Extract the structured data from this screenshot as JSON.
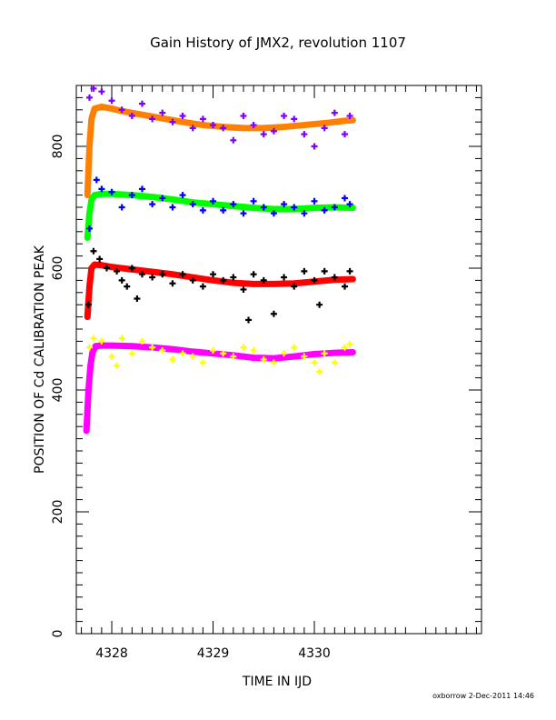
{
  "chart_data": {
    "type": "scatter",
    "title": "Gain History of JMX2, revolution 1107",
    "xlabel": "TIME IN IJD",
    "ylabel": "POSITION OF Cd CALIBRATION PEAK",
    "footer": "oxborrow  2-Dec-2011 14:46",
    "xlim": [
      4327.65,
      4331.65
    ],
    "ylim": [
      0,
      900
    ],
    "xticks": [
      4328,
      4329,
      4330
    ],
    "xtick_labels": [
      "4328",
      "4329",
      "4330"
    ],
    "yticks": [
      0,
      200,
      400,
      600,
      800
    ],
    "ytick_labels": [
      "0",
      "200",
      "400",
      "600",
      "800"
    ],
    "grid": false,
    "legend": "none",
    "series": [
      {
        "color": "#ff8000",
        "fit": true,
        "x": [
          4327.76,
          4327.78,
          4327.8,
          4327.83,
          4327.9,
          4328.0,
          4328.1,
          4328.3,
          4328.5,
          4328.7,
          4328.9,
          4329.1,
          4329.3,
          4329.5,
          4329.7,
          4329.9,
          4330.1,
          4330.3,
          4330.38
        ],
        "values": [
          720,
          800,
          845,
          862,
          865,
          862,
          858,
          852,
          846,
          840,
          835,
          832,
          830,
          830,
          832,
          835,
          838,
          842,
          843
        ]
      },
      {
        "color": "#8000ff",
        "fit": false,
        "x": [
          4327.78,
          4327.82,
          4327.9,
          4328.0,
          4328.1,
          4328.2,
          4328.3,
          4328.4,
          4328.5,
          4328.6,
          4328.7,
          4328.8,
          4328.9,
          4329.0,
          4329.1,
          4329.2,
          4329.3,
          4329.4,
          4329.5,
          4329.6,
          4329.7,
          4329.8,
          4329.9,
          4330.0,
          4330.1,
          4330.2,
          4330.3,
          4330.35
        ],
        "values": [
          880,
          895,
          890,
          875,
          860,
          850,
          870,
          845,
          855,
          840,
          850,
          830,
          845,
          835,
          830,
          810,
          850,
          835,
          820,
          825,
          850,
          845,
          820,
          800,
          830,
          855,
          820,
          850
        ]
      },
      {
        "color": "#00ff00",
        "fit": true,
        "x": [
          4327.76,
          4327.78,
          4327.8,
          4327.83,
          4327.9,
          4328.0,
          4328.2,
          4328.4,
          4328.6,
          4328.8,
          4329.0,
          4329.2,
          4329.4,
          4329.6,
          4329.8,
          4330.0,
          4330.2,
          4330.38
        ],
        "values": [
          650,
          690,
          712,
          720,
          722,
          722,
          720,
          717,
          713,
          708,
          705,
          702,
          699,
          697,
          697,
          699,
          700,
          699
        ]
      },
      {
        "color": "#0000ff",
        "fit": false,
        "x": [
          4327.78,
          4327.85,
          4327.9,
          4328.0,
          4328.1,
          4328.2,
          4328.3,
          4328.4,
          4328.5,
          4328.6,
          4328.7,
          4328.8,
          4328.9,
          4329.0,
          4329.1,
          4329.2,
          4329.3,
          4329.4,
          4329.5,
          4329.6,
          4329.7,
          4329.8,
          4329.9,
          4330.0,
          4330.1,
          4330.2,
          4330.3,
          4330.35
        ],
        "values": [
          665,
          745,
          730,
          725,
          700,
          720,
          730,
          705,
          715,
          700,
          720,
          705,
          695,
          710,
          695,
          705,
          690,
          710,
          700,
          690,
          705,
          700,
          690,
          710,
          695,
          700,
          715,
          705
        ]
      },
      {
        "color": "#ff0000",
        "fit": true,
        "x": [
          4327.76,
          4327.78,
          4327.8,
          4327.83,
          4327.9,
          4328.0,
          4328.2,
          4328.4,
          4328.6,
          4328.8,
          4329.0,
          4329.2,
          4329.4,
          4329.6,
          4329.8,
          4330.0,
          4330.2,
          4330.38
        ],
        "values": [
          520,
          570,
          600,
          606,
          605,
          602,
          598,
          594,
          590,
          585,
          580,
          576,
          574,
          574,
          575,
          578,
          581,
          582
        ]
      },
      {
        "color": "#000000",
        "fit": false,
        "x": [
          4327.77,
          4327.82,
          4327.88,
          4327.95,
          4328.05,
          4328.1,
          4328.15,
          4328.2,
          4328.25,
          4328.3,
          4328.4,
          4328.5,
          4328.6,
          4328.7,
          4328.8,
          4328.9,
          4329.0,
          4329.1,
          4329.2,
          4329.3,
          4329.35,
          4329.4,
          4329.5,
          4329.6,
          4329.7,
          4329.8,
          4329.9,
          4330.0,
          4330.05,
          4330.1,
          4330.2,
          4330.3,
          4330.35
        ],
        "values": [
          540,
          628,
          615,
          600,
          595,
          580,
          570,
          600,
          550,
          590,
          585,
          590,
          575,
          590,
          580,
          570,
          590,
          580,
          585,
          565,
          515,
          590,
          580,
          525,
          585,
          570,
          595,
          580,
          540,
          595,
          585,
          570,
          595
        ]
      },
      {
        "color": "#ff00ff",
        "fit": true,
        "x": [
          4327.75,
          4327.77,
          4327.79,
          4327.81,
          4327.84,
          4327.9,
          4328.0,
          4328.2,
          4328.4,
          4328.6,
          4328.8,
          4329.0,
          4329.2,
          4329.4,
          4329.6,
          4329.8,
          4330.0,
          4330.2,
          4330.38
        ],
        "values": [
          333,
          400,
          440,
          462,
          472,
          473,
          473,
          472,
          470,
          467,
          463,
          460,
          457,
          453,
          452,
          455,
          459,
          461,
          462
        ]
      },
      {
        "color": "#ffff00",
        "fit": false,
        "x": [
          4327.78,
          4327.82,
          4327.9,
          4328.0,
          4328.05,
          4328.1,
          4328.2,
          4328.3,
          4328.4,
          4328.5,
          4328.6,
          4328.7,
          4328.8,
          4328.9,
          4329.0,
          4329.1,
          4329.2,
          4329.3,
          4329.4,
          4329.5,
          4329.6,
          4329.7,
          4329.8,
          4329.9,
          4330.0,
          4330.05,
          4330.1,
          4330.2,
          4330.3,
          4330.35
        ],
        "values": [
          470,
          485,
          480,
          455,
          440,
          485,
          460,
          480,
          470,
          465,
          450,
          460,
          455,
          445,
          465,
          460,
          455,
          470,
          465,
          450,
          445,
          460,
          470,
          455,
          445,
          430,
          460,
          445,
          470,
          475
        ]
      }
    ]
  }
}
